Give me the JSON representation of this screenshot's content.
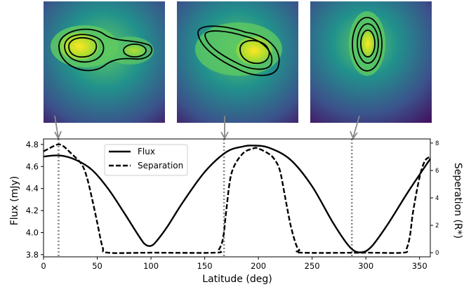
{
  "chart_data": {
    "type": "line",
    "xlabel": "Latitude (deg)",
    "ylabel_left": "Flux (mJy)",
    "ylabel_right": "Seperation (R*)",
    "xlim": [
      0,
      360
    ],
    "ylim_left": [
      3.78,
      4.85
    ],
    "ylim_right": [
      -0.3,
      8.3
    ],
    "x_ticks": [
      0,
      50,
      100,
      150,
      200,
      250,
      300,
      350
    ],
    "y_ticks_left": [
      3.8,
      4.0,
      4.2,
      4.4,
      4.6,
      4.8
    ],
    "y_ticks_right": [
      0,
      2,
      4,
      6,
      8
    ],
    "legend": {
      "position": "upper-center",
      "entries": [
        "Flux",
        "Separation"
      ]
    },
    "grid": false,
    "series": [
      {
        "name": "Flux",
        "style": "solid",
        "axis": "left",
        "x": [
          0,
          15,
          30,
          45,
          60,
          75,
          90,
          95,
          100,
          105,
          115,
          130,
          150,
          170,
          185,
          195,
          210,
          230,
          250,
          270,
          285,
          295,
          305,
          320,
          340,
          360
        ],
        "y": [
          4.69,
          4.7,
          4.66,
          4.57,
          4.4,
          4.18,
          3.95,
          3.89,
          3.88,
          3.92,
          4.05,
          4.28,
          4.55,
          4.73,
          4.78,
          4.79,
          4.77,
          4.66,
          4.42,
          4.08,
          3.87,
          3.82,
          3.87,
          4.07,
          4.38,
          4.67
        ]
      },
      {
        "name": "Separation",
        "style": "dashed",
        "axis": "right",
        "x": [
          0,
          5,
          10,
          14,
          18,
          25,
          35,
          40,
          45,
          50,
          55,
          60,
          100,
          160,
          163,
          166,
          168,
          170,
          175,
          185,
          195,
          200,
          210,
          215,
          220,
          225,
          230,
          235,
          238,
          240,
          300,
          335,
          338,
          341,
          344,
          350,
          355,
          360
        ],
        "y": [
          7.4,
          7.6,
          7.8,
          7.9,
          7.8,
          7.3,
          6.5,
          5.6,
          4.0,
          2.2,
          0.4,
          0.0,
          0.0,
          0.0,
          0.2,
          0.7,
          1.5,
          3.0,
          5.8,
          7.2,
          7.6,
          7.6,
          7.2,
          6.8,
          6.0,
          4.0,
          2.0,
          0.6,
          0.2,
          0.0,
          0.0,
          0.0,
          0.3,
          1.2,
          3.0,
          5.5,
          6.7,
          7.0
        ]
      }
    ],
    "markers": [
      14,
      168,
      287
    ],
    "colors": {
      "line": "#000000",
      "marker_line": "#888888",
      "arrow": "#888888",
      "colormap": [
        "#440154",
        "#3b528b",
        "#21918c",
        "#5ec962",
        "#fde725"
      ]
    },
    "insets": [
      {
        "latitude": 14,
        "morphology": "two-lobes-primary-left"
      },
      {
        "latitude": 168,
        "morphology": "two-lobes-primary-right"
      },
      {
        "latitude": 287,
        "morphology": "single-elongated-lobe"
      }
    ]
  }
}
